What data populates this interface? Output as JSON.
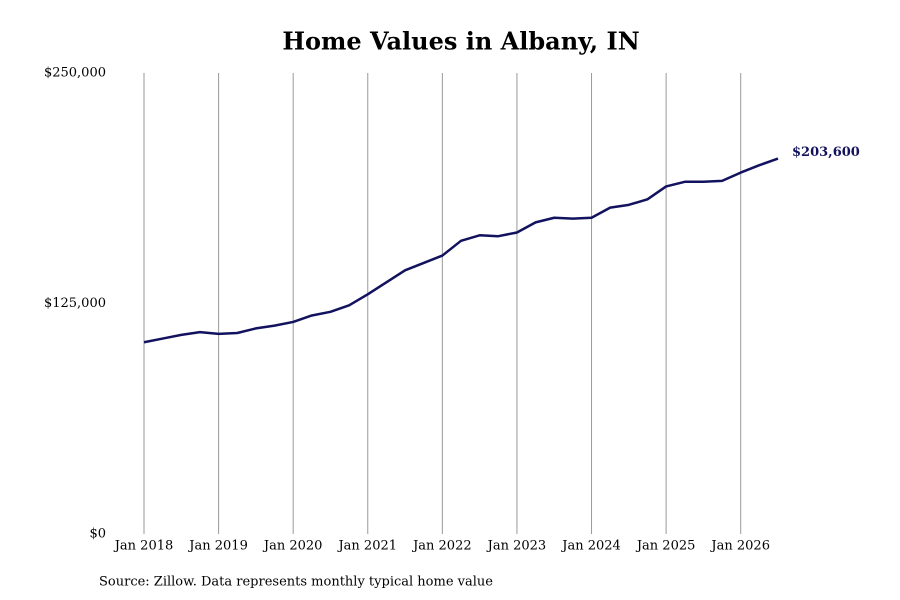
{
  "chart_data": {
    "type": "line",
    "title": "Home Values in Albany, IN",
    "source": "Source: Zillow. Data represents monthly typical home value",
    "x": [
      "2018-01",
      "2018-04",
      "2018-07",
      "2018-10",
      "2019-01",
      "2019-04",
      "2019-07",
      "2019-10",
      "2020-01",
      "2020-04",
      "2020-07",
      "2020-10",
      "2021-01",
      "2021-04",
      "2021-07",
      "2021-10",
      "2022-01",
      "2022-04",
      "2022-07",
      "2022-10",
      "2023-01",
      "2023-04",
      "2023-07",
      "2023-10",
      "2024-01",
      "2024-04",
      "2024-07",
      "2024-10",
      "2025-01",
      "2025-04",
      "2025-07",
      "2025-10",
      "2026-01",
      "2026-04",
      "2026-07"
    ],
    "series": [
      {
        "name": "Home value",
        "color": "#12125e",
        "values": [
          104000,
          106000,
          108000,
          109500,
          108500,
          109000,
          111500,
          113000,
          115000,
          118500,
          120500,
          124000,
          130000,
          136500,
          143000,
          147000,
          151000,
          159000,
          162000,
          161500,
          163500,
          169000,
          171500,
          171000,
          171500,
          177000,
          178500,
          181500,
          188500,
          191000,
          191000,
          191500,
          196000,
          200000,
          203600
        ],
        "value_labels": [
          null,
          null,
          null,
          null,
          null,
          null,
          null,
          null,
          null,
          null,
          null,
          null,
          null,
          null,
          null,
          null,
          null,
          null,
          null,
          null,
          null,
          null,
          null,
          null,
          null,
          null,
          null,
          null,
          null,
          null,
          null,
          null,
          null,
          null,
          "$203,600"
        ]
      }
    ],
    "xlim": [
      "2018-01",
      "2026-07"
    ],
    "xticks": [
      {
        "value": "2018-01",
        "label": "Jan 2018"
      },
      {
        "value": "2019-01",
        "label": "Jan 2019"
      },
      {
        "value": "2020-01",
        "label": "Jan 2020"
      },
      {
        "value": "2021-01",
        "label": "Jan 2021"
      },
      {
        "value": "2022-01",
        "label": "Jan 2022"
      },
      {
        "value": "2023-01",
        "label": "Jan 2023"
      },
      {
        "value": "2024-01",
        "label": "Jan 2024"
      },
      {
        "value": "2025-01",
        "label": "Jan 2025"
      },
      {
        "value": "2026-01",
        "label": "Jan 2026"
      }
    ],
    "ylim": [
      0,
      250000
    ],
    "yticks": [
      {
        "value": 0,
        "label": "$0"
      },
      {
        "value": 125000,
        "label": "$125,000"
      },
      {
        "value": 250000,
        "label": "$250,000"
      }
    ],
    "grid": "x"
  }
}
